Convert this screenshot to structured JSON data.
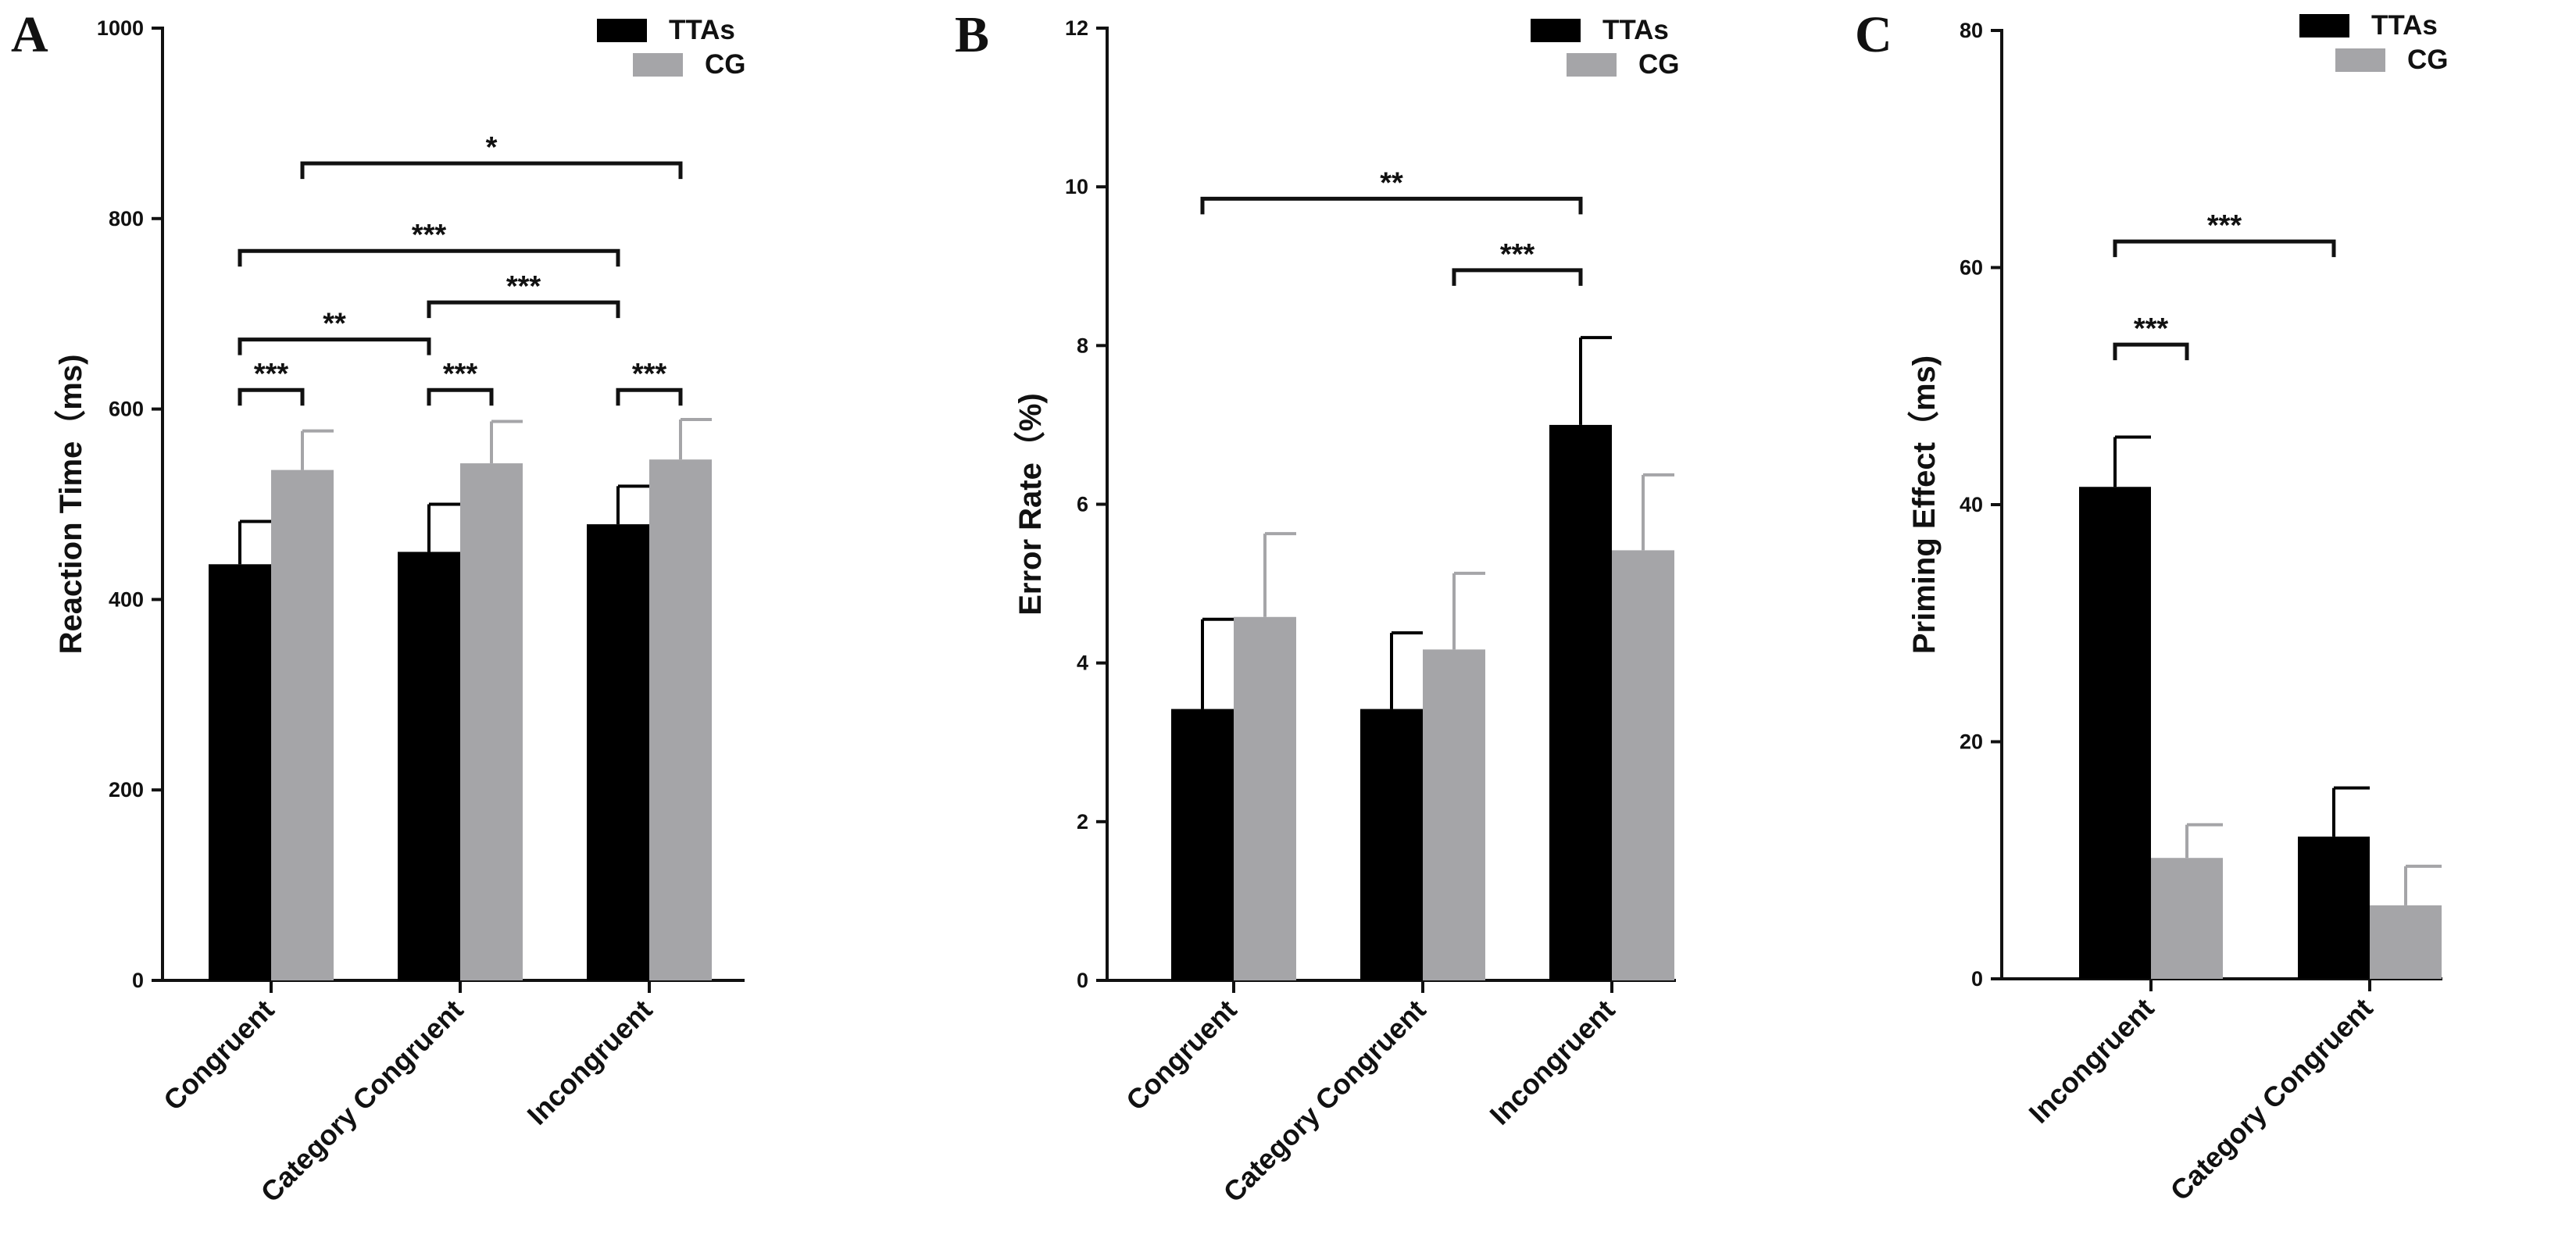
{
  "colors": {
    "TTAs": "#000000",
    "CG": "#a5a5a8",
    "axis": "#111111"
  },
  "chart_data": [
    {
      "type": "bar",
      "panel": "A",
      "ylabel": "Reaction Time（ms)",
      "ylim": [
        0,
        1000
      ],
      "yticks": [
        "0",
        "200",
        "400",
        "600",
        "800",
        "1000"
      ],
      "categories": [
        "Congruent",
        "Category Congruent",
        "Incongruent"
      ],
      "series": [
        {
          "name": "TTAs",
          "values": [
            437,
            450,
            479
          ],
          "errors": [
            45,
            50,
            40
          ]
        },
        {
          "name": "CG",
          "values": [
            536,
            543,
            547
          ],
          "errors": [
            41,
            44,
            42
          ]
        }
      ],
      "legend": [
        "TTAs",
        "CG"
      ],
      "significance": [
        {
          "from": [
            0,
            0
          ],
          "to": [
            0,
            1
          ],
          "label": "***",
          "y": 620
        },
        {
          "from": [
            1,
            0
          ],
          "to": [
            1,
            1
          ],
          "label": "***",
          "y": 620
        },
        {
          "from": [
            2,
            0
          ],
          "to": [
            2,
            1
          ],
          "label": "***",
          "y": 620
        },
        {
          "from": [
            0,
            0
          ],
          "to": [
            1,
            0
          ],
          "label": "**",
          "y": 673
        },
        {
          "from": [
            1,
            0
          ],
          "to": [
            2,
            0
          ],
          "label": "***",
          "y": 712
        },
        {
          "from": [
            0,
            0
          ],
          "to": [
            2,
            0
          ],
          "label": "***",
          "y": 766
        },
        {
          "from": [
            0,
            1
          ],
          "to": [
            2,
            1
          ],
          "label": "*",
          "y": 858
        }
      ]
    },
    {
      "type": "bar",
      "panel": "B",
      "ylabel": "Error Rate（%)",
      "ylim": [
        0,
        12
      ],
      "yticks": [
        "0",
        "2",
        "4",
        "6",
        "8",
        "10",
        "12"
      ],
      "categories": [
        "Congruent",
        "Category Congruent",
        "Incongruent"
      ],
      "series": [
        {
          "name": "TTAs",
          "values": [
            3.42,
            3.42,
            7.0
          ],
          "errors": [
            1.13,
            0.96,
            1.1
          ]
        },
        {
          "name": "CG",
          "values": [
            4.58,
            4.17,
            5.42
          ],
          "errors": [
            1.05,
            0.96,
            0.95
          ]
        }
      ],
      "legend": [
        "TTAs",
        "CG"
      ],
      "significance": [
        {
          "from": [
            1,
            1
          ],
          "to": [
            2,
            0
          ],
          "label": "***",
          "y": 8.95
        },
        {
          "from": [
            0,
            0
          ],
          "to": [
            2,
            0
          ],
          "label": "**",
          "y": 9.85
        }
      ]
    },
    {
      "type": "bar",
      "panel": "C",
      "ylabel": "Priming Effect（ms)",
      "ylim": [
        0,
        80
      ],
      "yticks": [
        "0",
        "20",
        "40",
        "60",
        "80"
      ],
      "categories": [
        "Incongruent",
        "Category Congruent"
      ],
      "series": [
        {
          "name": "TTAs",
          "values": [
            41.5,
            12.0
          ],
          "errors": [
            4.2,
            4.1
          ]
        },
        {
          "name": "CG",
          "values": [
            10.2,
            6.2
          ],
          "errors": [
            2.8,
            3.3
          ]
        }
      ],
      "legend": [
        "TTAs",
        "CG"
      ],
      "significance": [
        {
          "from": [
            0,
            0
          ],
          "to": [
            0,
            1
          ],
          "label": "***",
          "y": 53.5
        },
        {
          "from": [
            0,
            0
          ],
          "to": [
            1,
            0
          ],
          "label": "***",
          "y": 62.2
        }
      ]
    }
  ]
}
